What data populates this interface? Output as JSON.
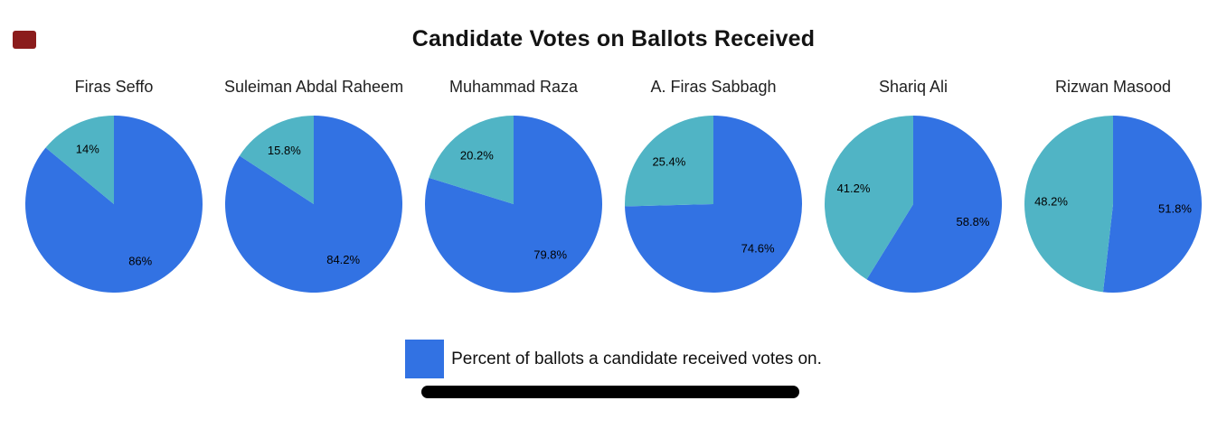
{
  "marker": {
    "color": "#8b1c1c"
  },
  "header": {
    "title": "Candidate Votes on Ballots Received"
  },
  "chart_data": {
    "type": "pie",
    "title": "Candidate Votes on Ballots Received",
    "layout": "6 pie charts in one horizontal row, labels inside slices, legend at bottom center",
    "colors": {
      "received": "#3272e3",
      "remainder": "#50b4c5"
    },
    "legend": {
      "label": "Percent of ballots a candidate received votes on.",
      "position": "bottom",
      "swatch_color": "#3272e3"
    },
    "pies": [
      {
        "candidate": "Firas Seffo",
        "received_pct": 86.0,
        "remainder_pct": 14.0,
        "received_label": "86%",
        "remainder_label": "14%"
      },
      {
        "candidate": "Suleiman Abdal Raheem",
        "received_pct": 84.2,
        "remainder_pct": 15.8,
        "received_label": "84.2%",
        "remainder_label": "15.8%"
      },
      {
        "candidate": "Muhammad Raza",
        "received_pct": 79.8,
        "remainder_pct": 20.2,
        "received_label": "79.8%",
        "remainder_label": "20.2%"
      },
      {
        "candidate": "A. Firas Sabbagh",
        "received_pct": 74.6,
        "remainder_pct": 25.4,
        "received_label": "74.6%",
        "remainder_label": "25.4%"
      },
      {
        "candidate": "Shariq Ali",
        "received_pct": 58.8,
        "remainder_pct": 41.2,
        "received_label": "58.8%",
        "remainder_label": "41.2%"
      },
      {
        "candidate": "Rizwan Masood",
        "received_pct": 51.8,
        "remainder_pct": 48.2,
        "received_label": "51.8%",
        "remainder_label": "48.2%"
      }
    ]
  },
  "footer": {
    "scrollbar_color": "#000000"
  }
}
